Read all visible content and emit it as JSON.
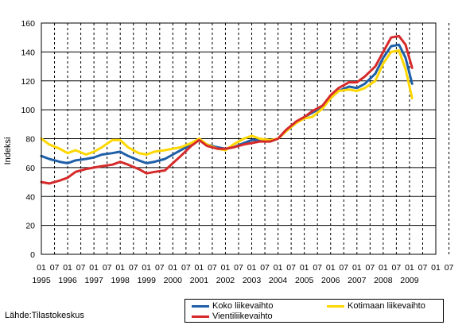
{
  "chart_data": {
    "type": "line",
    "title": "",
    "xlabel": "",
    "ylabel": "Indeksi",
    "ylim": [
      0,
      160
    ],
    "yticks": [
      0,
      20,
      40,
      60,
      80,
      100,
      120,
      140,
      160
    ],
    "grid": "horizontal solid, vertical dashed",
    "legend_position": "bottom-right",
    "x_month_labels": [
      "01",
      "07",
      "01",
      "07",
      "01",
      "07",
      "01",
      "07",
      "01",
      "07",
      "01",
      "07",
      "01",
      "07",
      "01",
      "07",
      "01",
      "07",
      "01",
      "07",
      "01",
      "07",
      "01",
      "07",
      "01",
      "07",
      "01",
      "07",
      "01",
      "07",
      "01",
      "07"
    ],
    "x_year_labels": [
      "1995",
      "1996",
      "1997",
      "1998",
      "1999",
      "2000",
      "2001",
      "2002",
      "2003",
      "2004",
      "2005",
      "2006",
      "2007",
      "2008",
      "2009"
    ],
    "x_start_year": 1995,
    "x_end": 2010,
    "series": [
      {
        "name": "Koko liikevaihto",
        "color": "#1f5fa8",
        "points": [
          [
            1995.0,
            68
          ],
          [
            1995.3,
            66
          ],
          [
            1995.7,
            64
          ],
          [
            1996.0,
            63
          ],
          [
            1996.3,
            65
          ],
          [
            1996.7,
            66
          ],
          [
            1997.0,
            67
          ],
          [
            1997.3,
            69
          ],
          [
            1997.7,
            70
          ],
          [
            1998.0,
            71
          ],
          [
            1998.3,
            68
          ],
          [
            1998.7,
            65
          ],
          [
            1999.0,
            63
          ],
          [
            1999.3,
            64
          ],
          [
            1999.7,
            66
          ],
          [
            2000.0,
            69
          ],
          [
            2000.3,
            72
          ],
          [
            2000.7,
            76
          ],
          [
            2001.0,
            79
          ],
          [
            2001.3,
            76
          ],
          [
            2001.7,
            74
          ],
          [
            2002.0,
            73
          ],
          [
            2002.3,
            74
          ],
          [
            2002.7,
            77
          ],
          [
            2003.0,
            79
          ],
          [
            2003.3,
            79
          ],
          [
            2003.7,
            78
          ],
          [
            2004.0,
            80
          ],
          [
            2004.3,
            85
          ],
          [
            2004.7,
            91
          ],
          [
            2005.0,
            95
          ],
          [
            2005.3,
            98
          ],
          [
            2005.7,
            102
          ],
          [
            2006.0,
            108
          ],
          [
            2006.3,
            113
          ],
          [
            2006.7,
            116
          ],
          [
            2007.0,
            115
          ],
          [
            2007.3,
            118
          ],
          [
            2007.7,
            125
          ],
          [
            2008.0,
            136
          ],
          [
            2008.3,
            144
          ],
          [
            2008.6,
            145
          ],
          [
            2008.85,
            136
          ],
          [
            2009.1,
            118
          ]
        ]
      },
      {
        "name": "Kotimaan liikevaihto",
        "color": "#ffd700",
        "points": [
          [
            1995.0,
            80
          ],
          [
            1995.3,
            76
          ],
          [
            1995.7,
            73
          ],
          [
            1996.0,
            70
          ],
          [
            1996.3,
            72
          ],
          [
            1996.7,
            69
          ],
          [
            1997.0,
            71
          ],
          [
            1997.3,
            74
          ],
          [
            1997.7,
            79
          ],
          [
            1998.0,
            79
          ],
          [
            1998.3,
            74
          ],
          [
            1998.7,
            70
          ],
          [
            1999.0,
            69
          ],
          [
            1999.3,
            71
          ],
          [
            1999.7,
            72
          ],
          [
            2000.0,
            73
          ],
          [
            2000.3,
            74
          ],
          [
            2000.7,
            77
          ],
          [
            2001.0,
            80
          ],
          [
            2001.3,
            76
          ],
          [
            2001.7,
            73
          ],
          [
            2002.0,
            72
          ],
          [
            2002.3,
            76
          ],
          [
            2002.7,
            80
          ],
          [
            2003.0,
            82
          ],
          [
            2003.3,
            80
          ],
          [
            2003.7,
            79
          ],
          [
            2004.0,
            80
          ],
          [
            2004.3,
            85
          ],
          [
            2004.7,
            91
          ],
          [
            2005.0,
            94
          ],
          [
            2005.3,
            95
          ],
          [
            2005.7,
            101
          ],
          [
            2006.0,
            108
          ],
          [
            2006.3,
            113
          ],
          [
            2006.7,
            114
          ],
          [
            2007.0,
            113
          ],
          [
            2007.3,
            115
          ],
          [
            2007.7,
            120
          ],
          [
            2008.0,
            132
          ],
          [
            2008.3,
            140
          ],
          [
            2008.6,
            141
          ],
          [
            2008.85,
            128
          ],
          [
            2009.1,
            108
          ]
        ]
      },
      {
        "name": "Vientiliikevaihto",
        "color": "#d62a2a",
        "points": [
          [
            1995.0,
            50
          ],
          [
            1995.3,
            49
          ],
          [
            1995.7,
            51
          ],
          [
            1996.0,
            53
          ],
          [
            1996.3,
            57
          ],
          [
            1996.7,
            59
          ],
          [
            1997.0,
            60
          ],
          [
            1997.3,
            61
          ],
          [
            1997.7,
            62
          ],
          [
            1998.0,
            64
          ],
          [
            1998.3,
            62
          ],
          [
            1998.7,
            59
          ],
          [
            1999.0,
            56
          ],
          [
            1999.3,
            57
          ],
          [
            1999.7,
            58
          ],
          [
            2000.0,
            63
          ],
          [
            2000.3,
            68
          ],
          [
            2000.7,
            75
          ],
          [
            2001.0,
            79
          ],
          [
            2001.3,
            75
          ],
          [
            2001.7,
            73
          ],
          [
            2002.0,
            73
          ],
          [
            2002.3,
            74
          ],
          [
            2002.7,
            76
          ],
          [
            2003.0,
            77
          ],
          [
            2003.3,
            78
          ],
          [
            2003.7,
            78
          ],
          [
            2004.0,
            80
          ],
          [
            2004.3,
            86
          ],
          [
            2004.7,
            92
          ],
          [
            2005.0,
            95
          ],
          [
            2005.3,
            99
          ],
          [
            2005.7,
            103
          ],
          [
            2006.0,
            110
          ],
          [
            2006.3,
            115
          ],
          [
            2006.7,
            119
          ],
          [
            2007.0,
            119
          ],
          [
            2007.3,
            123
          ],
          [
            2007.7,
            130
          ],
          [
            2008.0,
            140
          ],
          [
            2008.3,
            150
          ],
          [
            2008.6,
            151
          ],
          [
            2008.85,
            145
          ],
          [
            2009.1,
            129
          ]
        ]
      }
    ]
  },
  "source_text": "Lähde:Tilastokeskus"
}
